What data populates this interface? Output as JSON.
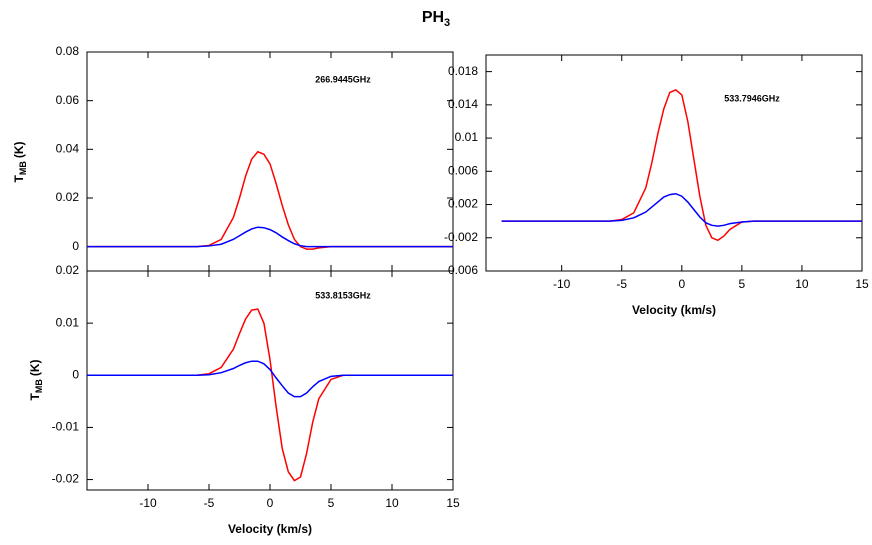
{
  "title": "PH",
  "title_subscript": "3",
  "chart_data": [
    {
      "type": "line",
      "annotation": "266.9445GHz",
      "y_label": "T",
      "y_label_subscript": "MB",
      "y_label_unit": "(K)",
      "show_xtick_labels": false,
      "xlim": [
        -15,
        15
      ],
      "xticks": [
        -10,
        -5,
        0,
        5,
        10,
        15
      ],
      "ylim": [
        -0.01,
        0.08
      ],
      "yticks": [
        0,
        0.02,
        0.04,
        0.06,
        0.08
      ],
      "x": [
        -15,
        -6,
        -5,
        -4,
        -3,
        -2.5,
        -2,
        -1.5,
        -1,
        -0.5,
        0,
        0.5,
        1,
        1.5,
        2,
        2.5,
        3,
        3.5,
        4,
        5,
        6,
        15
      ],
      "series": [
        {
          "color": "#ff0000",
          "values": [
            0,
            0,
            0.0005,
            0.003,
            0.012,
            0.02,
            0.029,
            0.036,
            0.039,
            0.038,
            0.034,
            0.026,
            0.017,
            0.009,
            0.003,
            0,
            -0.001,
            -0.001,
            -0.0005,
            0,
            0,
            0
          ]
        },
        {
          "color": "#0000ff",
          "values": [
            0,
            0,
            0.0003,
            0.001,
            0.003,
            0.0045,
            0.006,
            0.0073,
            0.008,
            0.0078,
            0.007,
            0.0057,
            0.004,
            0.0025,
            0.0012,
            0.0004,
            0,
            0,
            0,
            0,
            0,
            0
          ]
        }
      ]
    },
    {
      "type": "line",
      "annotation": "533.7946GHz",
      "x_label": "Velocity (km/s)",
      "show_xtick_labels": true,
      "xlim": [
        -16.3,
        15
      ],
      "xticks": [
        -10,
        -5,
        0,
        5,
        10,
        15
      ],
      "ylim": [
        -0.006,
        0.02
      ],
      "yticks": [
        -0.006,
        -0.002,
        0.002,
        0.006,
        0.01,
        0.014,
        0.018
      ],
      "x": [
        -15,
        -6,
        -5,
        -4,
        -3,
        -2.5,
        -2,
        -1.5,
        -1,
        -0.5,
        0,
        0.5,
        1,
        1.5,
        2,
        2.5,
        3,
        3.5,
        4,
        5,
        6,
        15
      ],
      "series": [
        {
          "color": "#ff0000",
          "values": [
            0,
            0,
            0.0002,
            0.001,
            0.004,
            0.007,
            0.0105,
            0.0135,
            0.0155,
            0.0158,
            0.0152,
            0.012,
            0.0075,
            0.003,
            -0.0005,
            -0.002,
            -0.0023,
            -0.0018,
            -0.001,
            -0.0001,
            0,
            0
          ]
        },
        {
          "color": "#0000ff",
          "values": [
            0,
            0,
            0.0001,
            0.0004,
            0.0011,
            0.0017,
            0.0023,
            0.0029,
            0.0032,
            0.0033,
            0.003,
            0.0023,
            0.0014,
            0.0005,
            -0.0002,
            -0.0005,
            -0.0006,
            -0.0005,
            -0.0003,
            -0.0001,
            0,
            0
          ]
        }
      ]
    },
    {
      "type": "line",
      "annotation": "533.8153GHz",
      "x_label": "Velocity (km/s)",
      "y_label": "T",
      "y_label_subscript": "MB",
      "y_label_unit": "(K)",
      "show_xtick_labels": true,
      "xlim": [
        -15,
        15
      ],
      "xticks": [
        -10,
        -5,
        0,
        5,
        10,
        15
      ],
      "ylim": [
        -0.022,
        0.02
      ],
      "yticks": [
        -0.02,
        -0.01,
        0,
        0.01,
        0.02
      ],
      "x": [
        -15,
        -6,
        -5,
        -4,
        -3,
        -2.5,
        -2,
        -1.5,
        -1,
        -0.5,
        0,
        0.5,
        1,
        1.5,
        2,
        2.5,
        3,
        3.5,
        4,
        5,
        6,
        15
      ],
      "series": [
        {
          "color": "#ff0000",
          "values": [
            0,
            0,
            0.0003,
            0.0015,
            0.005,
            0.008,
            0.0108,
            0.0125,
            0.0127,
            0.01,
            0.003,
            -0.006,
            -0.014,
            -0.0185,
            -0.0202,
            -0.0195,
            -0.015,
            -0.009,
            -0.0045,
            -0.0008,
            0,
            0
          ]
        },
        {
          "color": "#0000ff",
          "values": [
            0,
            0,
            0.0001,
            0.0005,
            0.0013,
            0.0019,
            0.0024,
            0.0027,
            0.0027,
            0.0022,
            0.0011,
            -0.0005,
            -0.002,
            -0.0034,
            -0.0041,
            -0.0041,
            -0.0034,
            -0.0022,
            -0.0012,
            -0.0002,
            0,
            0
          ]
        }
      ]
    }
  ]
}
